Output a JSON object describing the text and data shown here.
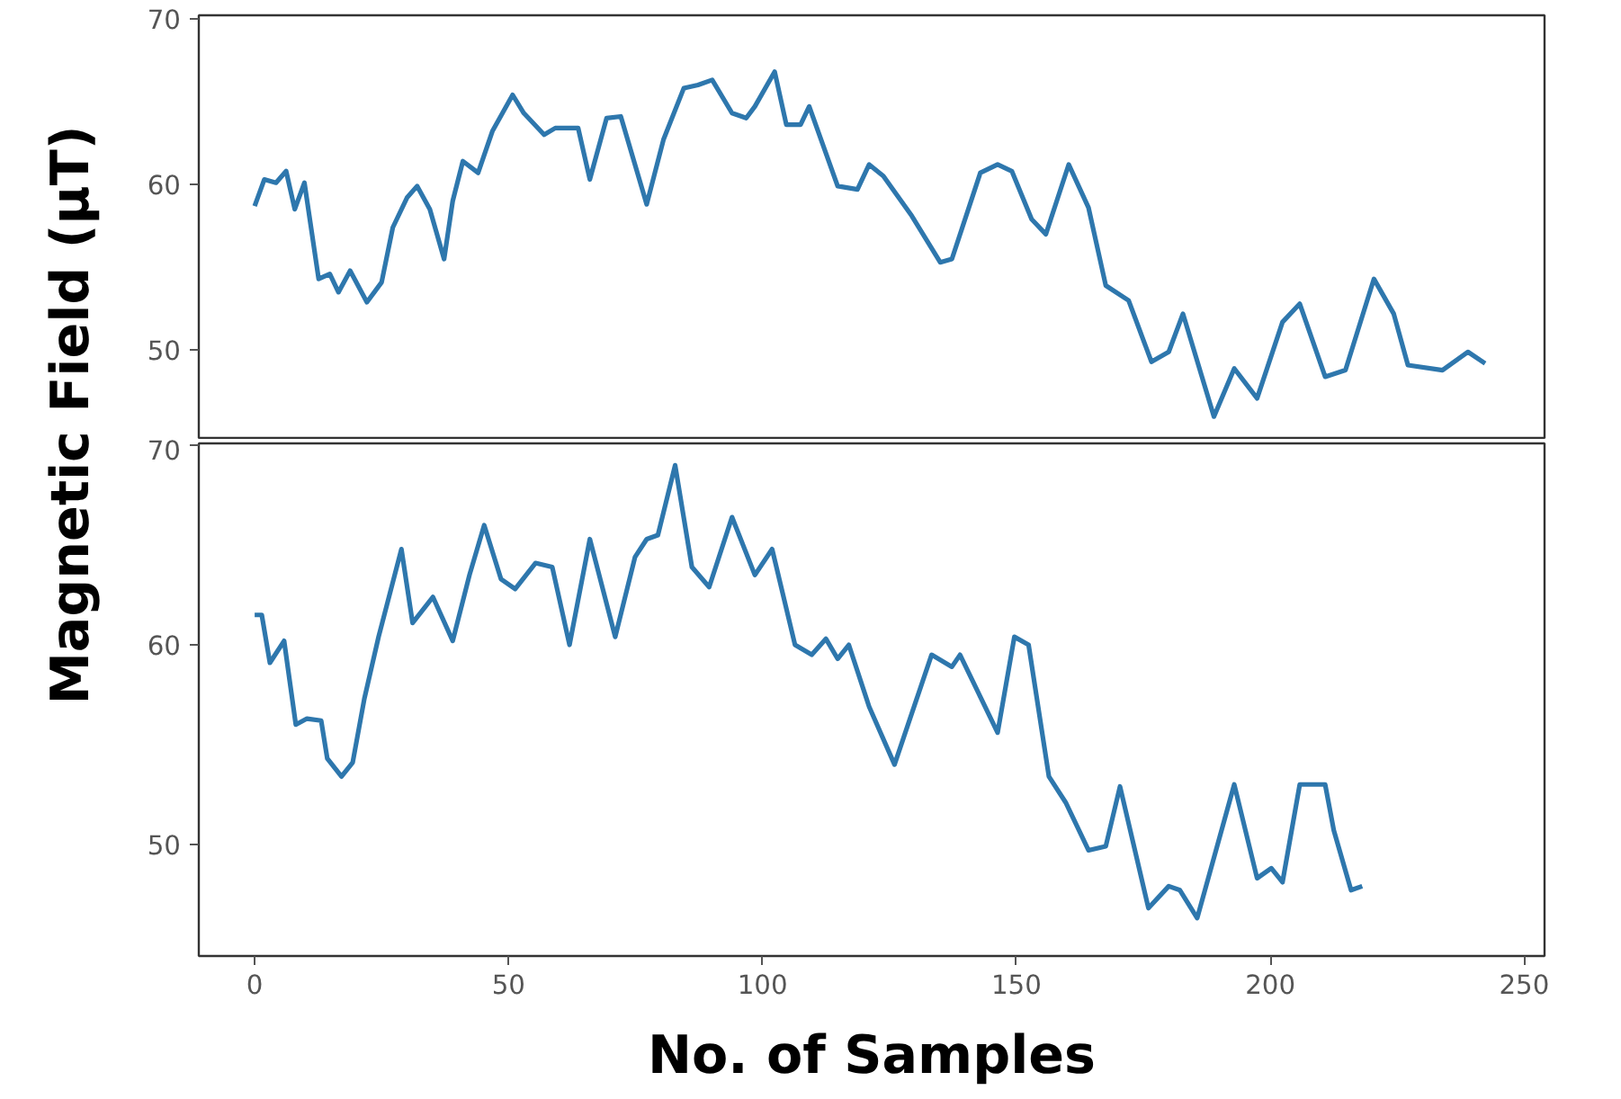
{
  "chart_data": [
    {
      "type": "line",
      "ylabel": "Magnetic Field (μT)",
      "xlim": [
        -11,
        254
      ],
      "ylim": [
        44.6,
        70.2
      ],
      "yticks": [
        50,
        60,
        70
      ],
      "tick_labels": "y",
      "series": [
        {
          "color": "#2e77ad",
          "x": [
            0,
            1.9,
            4.2,
            6.2,
            7.9,
            9.8,
            12.6,
            14.8,
            16.5,
            18.8,
            22.1,
            25,
            27.2,
            30,
            32,
            34.5,
            37.3,
            39,
            41,
            44,
            46.8,
            50.8,
            53,
            57,
            59.2,
            63.7,
            66,
            69.3,
            72.1,
            77.2,
            80.5,
            84.5,
            87.3,
            90.1,
            94,
            96.8,
            98.5,
            102.4,
            104.7,
            107.5,
            109.2,
            114.8,
            118.7,
            121,
            123.8,
            129.4,
            135,
            137.3,
            142.9,
            146.3,
            149.1,
            153,
            155.8,
            160.3,
            164.2,
            167.6,
            172.1,
            176.6,
            180,
            182.8,
            188.9,
            192.9,
            197.4,
            202.4,
            205.8,
            210.8,
            214.8,
            220.4,
            224.3,
            227.1,
            233.9,
            238.9,
            242.3
          ],
          "values": [
            58.7,
            60.3,
            60.1,
            60.8,
            58.5,
            60.1,
            54.3,
            54.6,
            53.5,
            54.8,
            52.9,
            54.1,
            57.4,
            59.2,
            59.9,
            58.5,
            55.5,
            59,
            61.4,
            60.7,
            63.2,
            65.4,
            64.3,
            63,
            63.4,
            63.4,
            60.3,
            64,
            64.1,
            58.8,
            62.7,
            65.8,
            66,
            66.3,
            64.3,
            64,
            64.7,
            66.8,
            63.6,
            63.6,
            64.7,
            59.9,
            59.7,
            61.2,
            60.5,
            58.1,
            55.3,
            55.5,
            60.7,
            61.2,
            60.8,
            57.9,
            57,
            61.2,
            58.6,
            53.9,
            53,
            49.3,
            49.9,
            52.2,
            46,
            48.9,
            47.1,
            51.7,
            52.8,
            48.4,
            48.8,
            54.3,
            52.2,
            49.1,
            48.8,
            49.9,
            49.2
          ]
        }
      ]
    },
    {
      "type": "line",
      "xlabel": "No. of Samples",
      "xlim": [
        -11,
        254
      ],
      "ylim": [
        44.4,
        70.1
      ],
      "xticks": [
        0,
        50,
        100,
        150,
        200,
        250
      ],
      "yticks": [
        50,
        60,
        70
      ],
      "series": [
        {
          "color": "#2e77ad",
          "x": [
            0,
            1.4,
            3,
            5.8,
            8.1,
            10.3,
            13.1,
            14.3,
            17.1,
            19.3,
            21.6,
            24.4,
            28.9,
            31.1,
            35.1,
            39,
            42.3,
            45.2,
            48.5,
            51.3,
            55.3,
            58.6,
            62,
            66,
            71,
            74.9,
            77.2,
            79.4,
            82.8,
            86.1,
            89.5,
            94,
            98.5,
            101.9,
            106.4,
            109.7,
            112.5,
            114.8,
            117,
            121,
            126,
            133.3,
            137.3,
            138.9,
            146.3,
            149.6,
            152.4,
            156.4,
            159.7,
            164.2,
            167.6,
            170.4,
            176,
            180,
            182.2,
            185.6,
            192.9,
            197.4,
            200.2,
            202.4,
            205.8,
            210.8,
            212.5,
            215.9,
            218.1
          ],
          "values": [
            61.5,
            61.5,
            59.1,
            60.2,
            56,
            56.3,
            56.2,
            54.3,
            53.4,
            54.1,
            57.3,
            60.4,
            64.8,
            61.1,
            62.4,
            60.2,
            63.5,
            66,
            63.3,
            62.8,
            64.1,
            63.9,
            60,
            65.3,
            60.4,
            64.4,
            65.3,
            65.5,
            69,
            63.9,
            62.9,
            66.4,
            63.5,
            64.8,
            60,
            59.5,
            60.3,
            59.3,
            60,
            56.9,
            54,
            59.5,
            58.9,
            59.5,
            55.6,
            60.4,
            60,
            53.4,
            52.1,
            49.7,
            49.9,
            52.9,
            46.8,
            47.9,
            47.7,
            46.3,
            53,
            48.3,
            48.8,
            48.1,
            53,
            53,
            50.7,
            47.7,
            47.9
          ]
        }
      ]
    }
  ]
}
